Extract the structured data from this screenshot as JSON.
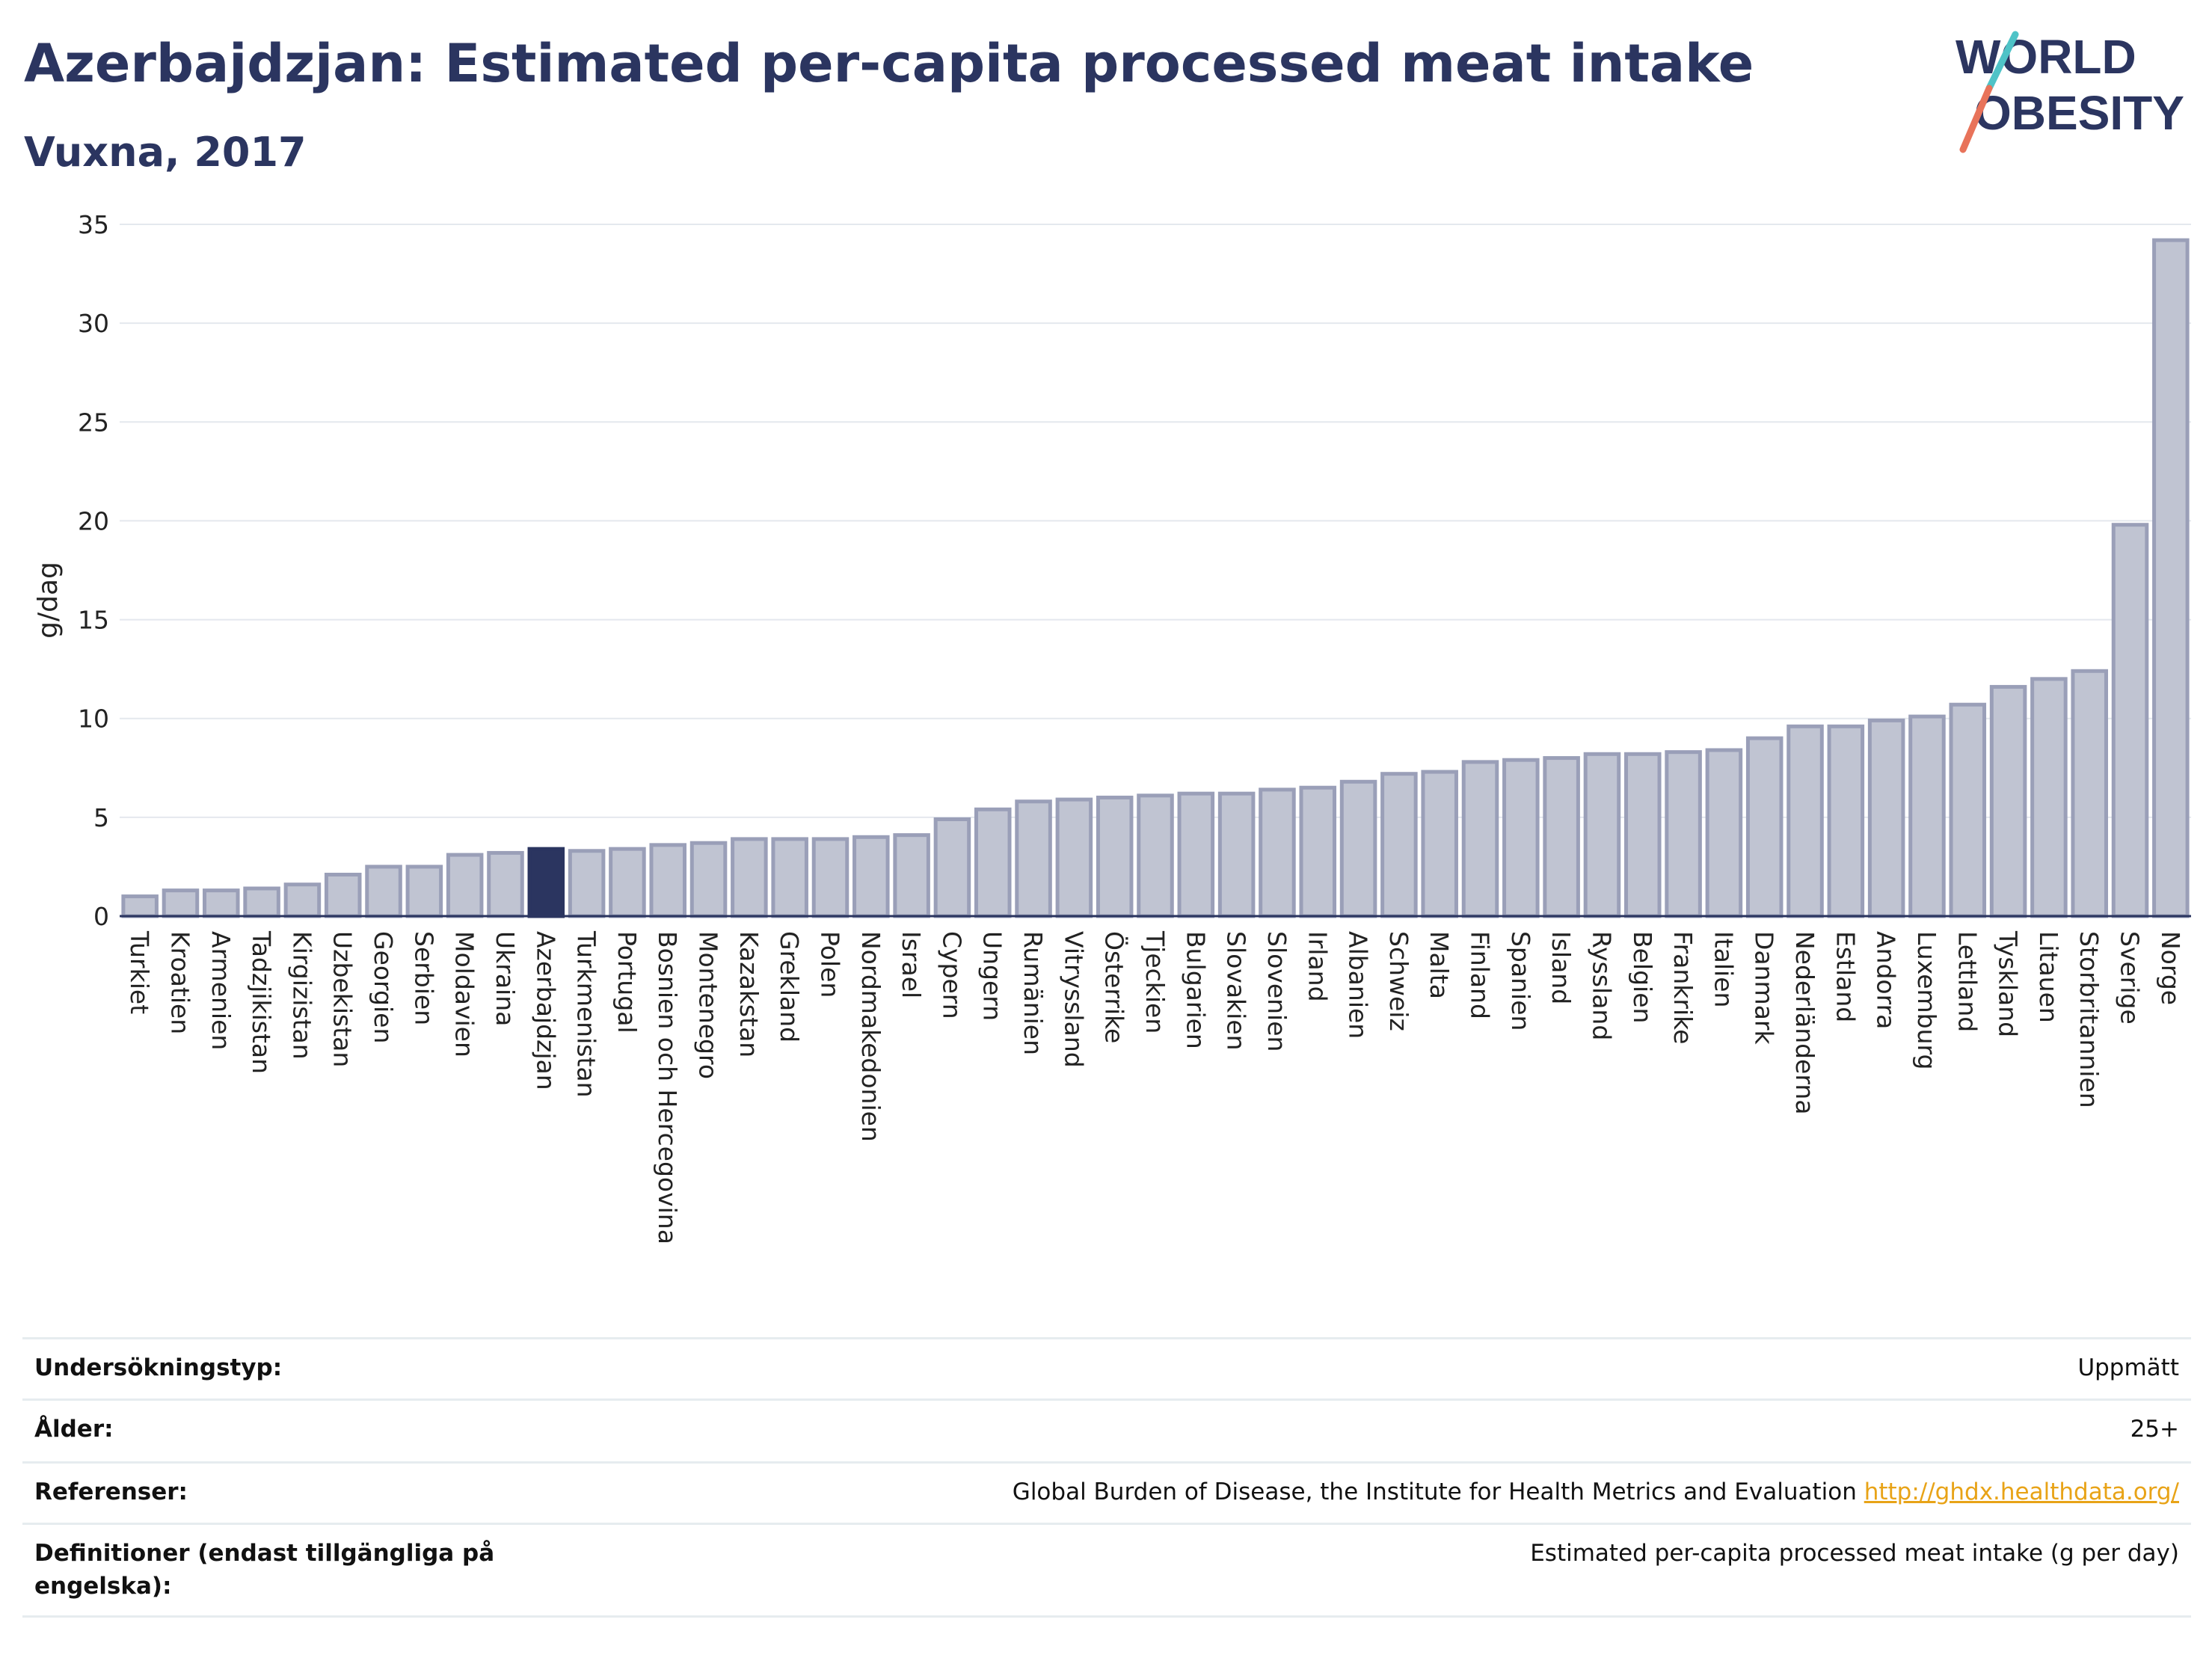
{
  "header": {
    "title": "Azerbajdzjan: Estimated per-capita processed meat intake",
    "subtitle": "Vuxna, 2017"
  },
  "logo": {
    "line1": "WORLD",
    "line2": "OBESITY"
  },
  "colors": {
    "bar": "#c0c4d2",
    "bar_edge": "#9a9fb8",
    "highlight": "#2b3560",
    "title": "#2b3560",
    "link": "#e8a317"
  },
  "chart_data": {
    "type": "bar",
    "ylabel": "g/dag",
    "ylim": [
      0,
      35
    ],
    "yticks": [
      0,
      5,
      10,
      15,
      20,
      25,
      30,
      35
    ],
    "grid": true,
    "highlight": "Azerbajdzjan",
    "categories": [
      "Turkiet",
      "Kroatien",
      "Armenien",
      "Tadzjikistan",
      "Kirgizistan",
      "Uzbekistan",
      "Georgien",
      "Serbien",
      "Moldavien",
      "Ukraina",
      "Azerbajdzjan",
      "Turkmenistan",
      "Portugal",
      "Bosnien och Hercegovina",
      "Montenegro",
      "Kazakstan",
      "Grekland",
      "Polen",
      "Nordmakedonien",
      "Israel",
      "Cypern",
      "Ungern",
      "Rumänien",
      "Vitryssland",
      "Österrike",
      "Tjeckien",
      "Bulgarien",
      "Slovakien",
      "Slovenien",
      "Irland",
      "Albanien",
      "Schweiz",
      "Malta",
      "Finland",
      "Spanien",
      "Island",
      "Ryssland",
      "Belgien",
      "Frankrike",
      "Italien",
      "Danmark",
      "Nederländerna",
      "Estland",
      "Andorra",
      "Luxemburg",
      "Lettland",
      "Tyskland",
      "Litauen",
      "Storbritannien",
      "Sverige",
      "Norge"
    ],
    "values": [
      1.0,
      1.3,
      1.3,
      1.4,
      1.6,
      2.1,
      2.5,
      2.5,
      3.1,
      3.2,
      3.4,
      3.3,
      3.4,
      3.6,
      3.7,
      3.9,
      3.9,
      3.9,
      4.0,
      4.1,
      4.9,
      5.4,
      5.8,
      5.9,
      6.0,
      6.1,
      6.2,
      6.2,
      6.4,
      6.5,
      6.8,
      7.2,
      7.3,
      7.8,
      7.9,
      8.0,
      8.2,
      8.2,
      8.3,
      8.4,
      9.0,
      9.6,
      9.6,
      9.9,
      10.1,
      10.7,
      11.6,
      12.0,
      12.4,
      19.8,
      34.2
    ]
  },
  "info": [
    {
      "key": "Undersökningstyp:",
      "value": "Uppmätt",
      "link": ""
    },
    {
      "key": "Ålder:",
      "value": "25+",
      "link": ""
    },
    {
      "key": "Referenser:",
      "value": "Global Burden of Disease, the Institute for Health Metrics and Evaluation",
      "link": "http://ghdx.healthdata.org/"
    },
    {
      "key": "Definitioner (endast tillgängliga på engelska):",
      "value": "Estimated per-capita processed meat intake (g per day)",
      "link": ""
    }
  ]
}
